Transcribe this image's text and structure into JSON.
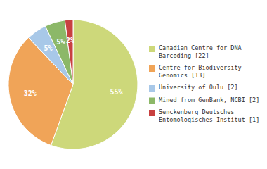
{
  "chart_data": {
    "type": "pie",
    "categories": [
      "Canadian Centre for DNA\nBarcoding [22]",
      "Centre for Biodiversity\nGenomics [13]",
      "University of Oulu [2]",
      "Mined from GenBank, NCBI [2]",
      "Senckenberg Deutsches\nEntomologisches Institut [1]"
    ],
    "values": [
      55,
      32,
      5,
      5,
      2
    ],
    "value_labels": [
      "55%",
      "32%",
      "5%",
      "5%",
      "2%"
    ],
    "colors": [
      "#cdd87a",
      "#f0a458",
      "#a8c8e8",
      "#8cb868",
      "#c84040"
    ],
    "data_labels": true,
    "legend": "right"
  }
}
